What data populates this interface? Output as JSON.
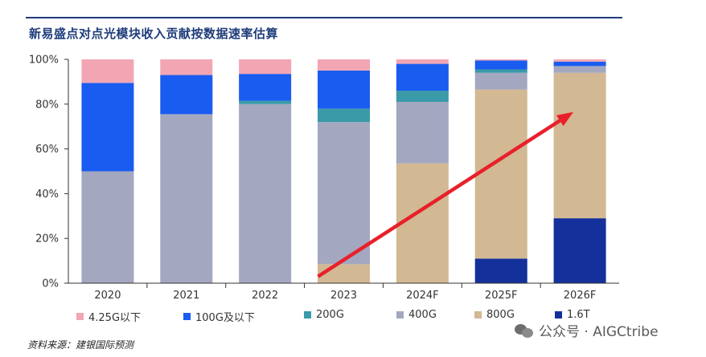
{
  "header": {
    "title": "新易盛点对点光模块收入贡献按数据速率估算"
  },
  "chart_data": {
    "type": "bar",
    "stacked": true,
    "title": "新易盛点对点光模块收入贡献按数据速率估算",
    "categories": [
      "2020",
      "2021",
      "2022",
      "2023",
      "2024F",
      "2025F",
      "2026F"
    ],
    "y_ticks": [
      "0%",
      "20%",
      "40%",
      "60%",
      "80%",
      "100%"
    ],
    "ylim": [
      0,
      100
    ],
    "series": [
      {
        "name": "1.6T",
        "color": "#14309a",
        "values": [
          0,
          0,
          0,
          0,
          0,
          11,
          29
        ]
      },
      {
        "name": "800G",
        "color": "#d2b893",
        "values": [
          0,
          0,
          0,
          8.5,
          53.5,
          75.5,
          65
        ]
      },
      {
        "name": "400G",
        "color": "#a4a7c0",
        "values": [
          50,
          75.5,
          80,
          63.5,
          27.5,
          7.5,
          3
        ]
      },
      {
        "name": "200G",
        "color": "#3a9aa8",
        "values": [
          0,
          0,
          1.5,
          6,
          5,
          1.5,
          0
        ]
      },
      {
        "name": "100G及以下",
        "color": "#1a5cf0",
        "values": [
          39.5,
          17.5,
          12,
          17,
          12,
          4,
          2
        ]
      },
      {
        "name": "4.25G以下",
        "color": "#f2a6b4",
        "values": [
          10.5,
          7,
          6.5,
          5,
          2,
          0.5,
          1
        ]
      }
    ],
    "legend": [
      "4.25G以下",
      "100G及以下",
      "200G",
      "400G",
      "800G",
      "1.6T"
    ],
    "legend_position": "bottom",
    "annotation": "red arrow indicating upward trend from 2023 to 2026F",
    "arrow_color": "#e8202a"
  },
  "footer": {
    "source": "资料来源：建银国际预测",
    "watermark": "公众号 · AIGCtribe"
  }
}
